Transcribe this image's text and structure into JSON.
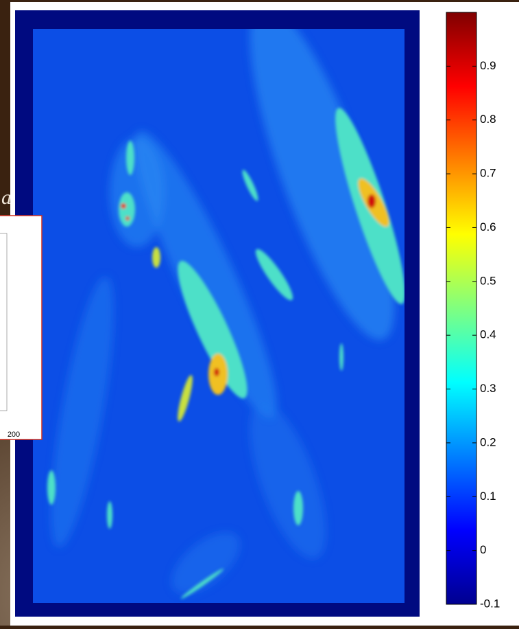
{
  "chart_data": {
    "type": "heatmap",
    "colorbar": {
      "lim": [
        -0.1,
        1
      ],
      "ticks": [
        -0.1,
        0,
        0.1,
        0.2,
        0.3,
        0.4,
        0.5,
        0.6,
        0.7,
        0.8,
        0.9
      ],
      "colors": [
        "#00008f",
        "#0000ff",
        "#00ffff",
        "#ffff00",
        "#ff0000",
        "#800000"
      ]
    }
  },
  "slide_text": "a",
  "inset": {
    "xtick": "200"
  }
}
